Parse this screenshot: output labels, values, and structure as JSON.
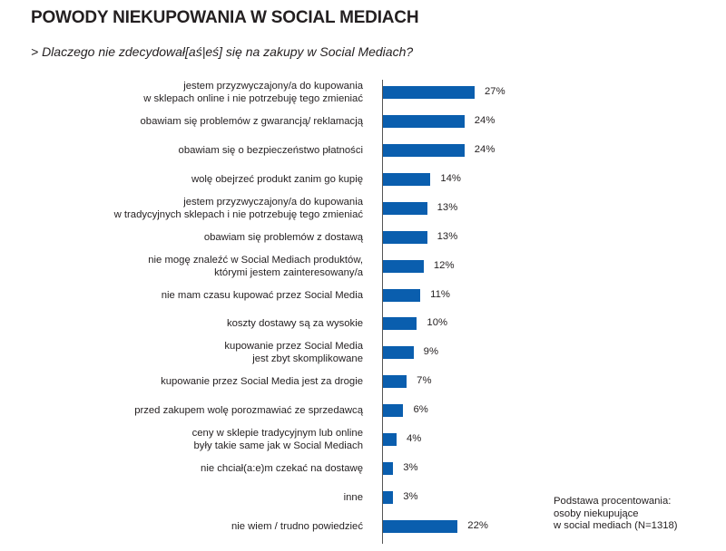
{
  "chart_data": {
    "type": "bar",
    "orientation": "horizontal",
    "title": "POWODY NIEKUPOWANIA W SOCIAL MEDIACH",
    "subtitle": "> Dlaczego nie zdecydował[aś|eś] się na zakupy w Social Mediach?",
    "unit": "%",
    "xlim": [
      0,
      30
    ],
    "grid": false,
    "bar_color": "#0a5eae",
    "categories": [
      "jestem przyzwyczajony/a do kupowania\nw sklepach online i nie potrzebuję tego zmieniać",
      "obawiam się problemów z gwarancją/ reklamacją",
      "obawiam się o bezpieczeństwo płatności",
      "wolę obejrzeć produkt zanim go kupię",
      "jestem przyzwyczajony/a do kupowania\nw tradycyjnych sklepach i nie potrzebuję tego zmieniać",
      "obawiam się problemów z dostawą",
      "nie mogę znaleźć w Social Mediach produktów,\nktórymi jestem zainteresowany/a",
      "nie mam czasu kupować przez Social Media",
      "koszty dostawy są za wysokie",
      "kupowanie przez Social Media\njest zbyt skomplikowane",
      "kupowanie przez Social Media jest za drogie",
      "przed zakupem wolę porozmawiać ze sprzedawcą",
      "ceny w sklepie tradycyjnym lub online\nbyły takie same jak w Social Mediach",
      "nie chciał(a:e)m czekać na dostawę",
      "inne",
      "nie wiem / trudno powiedzieć"
    ],
    "values": [
      27,
      24,
      24,
      14,
      13,
      13,
      12,
      11,
      10,
      9,
      7,
      6,
      4,
      3,
      3,
      22
    ],
    "value_labels": [
      "27%",
      "24%",
      "24%",
      "14%",
      "13%",
      "13%",
      "12%",
      "11%",
      "10%",
      "9%",
      "7%",
      "6%",
      "4%",
      "3%",
      "3%",
      "22%"
    ],
    "note": "Podstawa procentowania:\nosoby niekupujące\nw social mediach (N=1318)"
  }
}
